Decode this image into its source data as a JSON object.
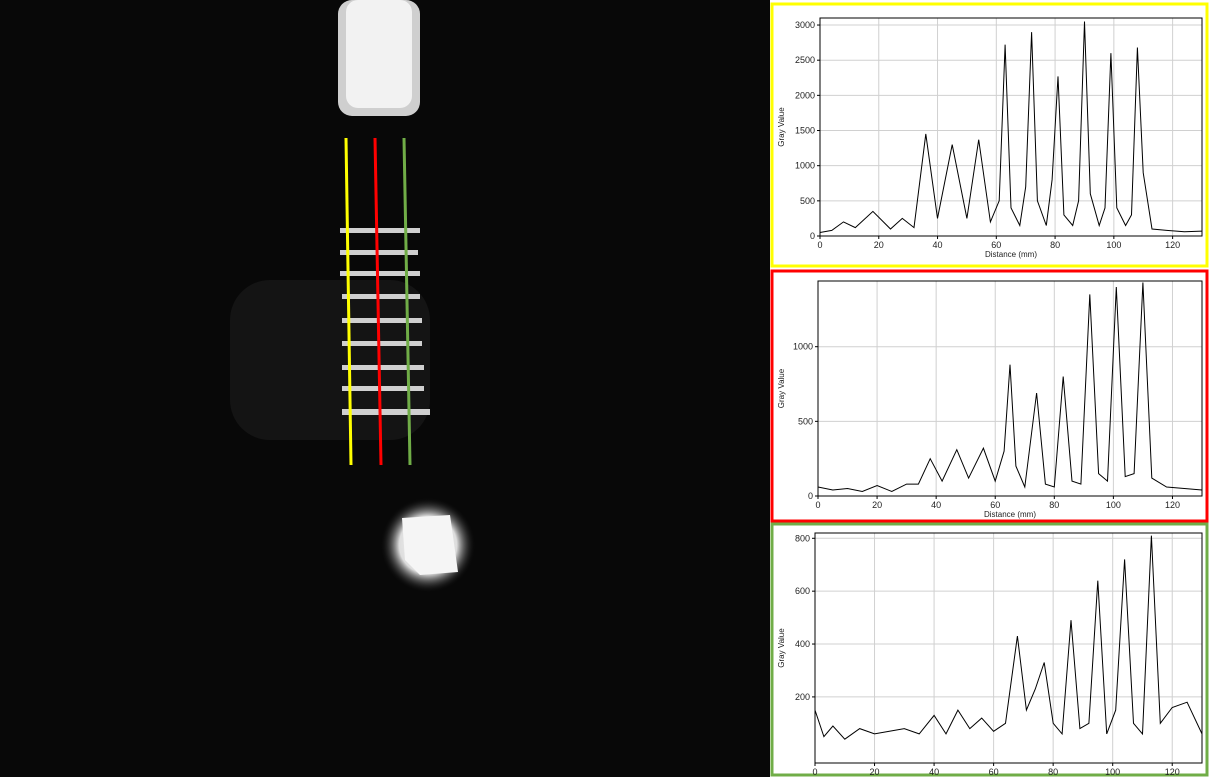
{
  "chart_data": [
    {
      "type": "line",
      "frame_color": "#ffff00",
      "x_label": "Distance (mm)",
      "y_label": "Gray Value",
      "color": "#000000",
      "grid": true,
      "xlim": [
        0,
        130
      ],
      "xticks": [
        0,
        20,
        40,
        60,
        80,
        100,
        120
      ],
      "ylim": [
        0,
        3100
      ],
      "yticks": [
        0,
        500,
        1000,
        1500,
        2000,
        2500,
        3000
      ],
      "x": [
        0,
        4,
        8,
        12,
        18,
        24,
        28,
        32,
        36,
        40,
        45,
        50,
        54,
        58,
        61,
        63,
        65,
        68,
        70,
        72,
        74,
        77,
        79,
        81,
        83,
        86,
        88,
        90,
        92,
        95,
        97,
        99,
        101,
        104,
        106,
        108,
        110,
        113,
        118,
        124,
        130
      ],
      "values": [
        50,
        80,
        200,
        120,
        350,
        100,
        250,
        120,
        1450,
        250,
        1300,
        250,
        1370,
        200,
        500,
        2720,
        400,
        150,
        700,
        2900,
        500,
        150,
        800,
        2270,
        300,
        150,
        500,
        3050,
        600,
        150,
        400,
        2600,
        400,
        150,
        300,
        2680,
        900,
        100,
        80,
        60,
        70
      ]
    },
    {
      "type": "line",
      "frame_color": "#ff0000",
      "x_label": "Distance (mm)",
      "y_label": "Gray Value",
      "color": "#000000",
      "grid": true,
      "xlim": [
        0,
        130
      ],
      "xticks": [
        0,
        20,
        40,
        60,
        80,
        100,
        120
      ],
      "ylim": [
        0,
        1440
      ],
      "yticks": [
        0,
        500,
        1000
      ],
      "x": [
        0,
        5,
        10,
        15,
        20,
        25,
        30,
        34,
        38,
        42,
        47,
        51,
        56,
        60,
        63,
        65,
        67,
        70,
        74,
        77,
        80,
        83,
        86,
        89,
        92,
        95,
        98,
        101,
        104,
        107,
        110,
        113,
        118,
        124,
        130
      ],
      "values": [
        60,
        40,
        50,
        30,
        70,
        30,
        80,
        80,
        250,
        100,
        310,
        120,
        320,
        100,
        300,
        880,
        200,
        60,
        690,
        80,
        60,
        800,
        100,
        80,
        1350,
        150,
        100,
        1400,
        130,
        150,
        1430,
        120,
        60,
        50,
        40
      ]
    },
    {
      "type": "line",
      "frame_color": "#70ad47",
      "x_label": "Distance (mm)",
      "y_label": "Gray Value",
      "color": "#000000",
      "grid": true,
      "xlim": [
        0,
        130
      ],
      "xticks": [
        0,
        20,
        40,
        60,
        80,
        100,
        120
      ],
      "ylim": [
        -50,
        820
      ],
      "yticks": [
        200,
        400,
        600,
        800
      ],
      "x": [
        0,
        3,
        6,
        10,
        15,
        20,
        25,
        30,
        35,
        40,
        44,
        48,
        52,
        56,
        60,
        64,
        68,
        71,
        74,
        77,
        80,
        83,
        86,
        89,
        92,
        95,
        98,
        101,
        104,
        107,
        110,
        113,
        116,
        120,
        125,
        130
      ],
      "values": [
        150,
        50,
        90,
        40,
        80,
        60,
        70,
        80,
        60,
        130,
        60,
        150,
        80,
        120,
        70,
        100,
        430,
        150,
        230,
        330,
        100,
        60,
        490,
        80,
        100,
        640,
        60,
        150,
        720,
        100,
        60,
        810,
        100,
        160,
        180,
        60
      ]
    }
  ]
}
